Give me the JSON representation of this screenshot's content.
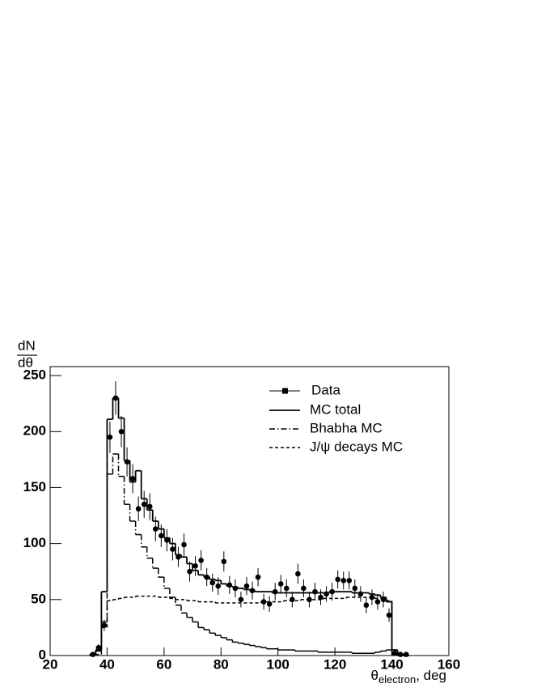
{
  "chart_data": {
    "type": "histogram",
    "bins": [
      34,
      36,
      38,
      40,
      42,
      44,
      46,
      48,
      50,
      52,
      54,
      56,
      58,
      60,
      62,
      64,
      66,
      68,
      70,
      72,
      74,
      76,
      78,
      80,
      82,
      84,
      86,
      88,
      90,
      92,
      94,
      96,
      98,
      100,
      102,
      104,
      106,
      108,
      110,
      112,
      114,
      116,
      118,
      120,
      122,
      124,
      126,
      128,
      130,
      132,
      134,
      136,
      138,
      140,
      142,
      144,
      146
    ],
    "series": [
      {
        "name": "MC total",
        "color": "#000000",
        "style": "solid",
        "values": [
          1,
          5,
          57,
          211,
          230,
          212,
          174,
          155,
          165,
          140,
          130,
          120,
          113,
          105,
          100,
          90,
          88,
          82,
          76,
          72,
          70,
          68,
          67,
          64,
          62,
          61,
          60,
          59,
          58,
          57,
          57,
          57,
          56,
          56,
          56,
          56,
          56,
          56,
          56,
          56,
          56,
          56,
          57,
          57,
          57,
          57,
          56,
          56,
          56,
          55,
          54,
          52,
          48,
          5,
          1,
          0
        ]
      },
      {
        "name": "Bhabha MC",
        "color": "#000000",
        "style": "dashdot",
        "values": [
          1,
          4,
          30,
          162,
          180,
          160,
          135,
          120,
          108,
          97,
          87,
          78,
          70,
          60,
          52,
          45,
          38,
          34,
          30,
          25,
          23,
          20,
          18,
          16,
          14,
          12,
          11,
          10,
          9,
          8,
          7,
          6,
          6,
          5,
          5,
          5,
          4,
          4,
          4,
          4,
          3,
          3,
          3,
          3,
          3,
          3,
          2,
          2,
          2,
          2,
          3,
          4,
          5,
          1,
          0,
          0
        ]
      },
      {
        "name": "J/ψ decays MC",
        "color": "#000000",
        "style": "dashed",
        "values": [
          0,
          1,
          25,
          49,
          50,
          51,
          52,
          52,
          53,
          53,
          53,
          53,
          52,
          52,
          51,
          50,
          50,
          49,
          49,
          48,
          48,
          48,
          47,
          47,
          47,
          47,
          47,
          47,
          47,
          47,
          48,
          48,
          48,
          48,
          49,
          49,
          49,
          50,
          50,
          50,
          50,
          51,
          51,
          51,
          51,
          52,
          52,
          52,
          52,
          52,
          51,
          51,
          49,
          3,
          1,
          0
        ]
      }
    ],
    "data": {
      "name": "Data",
      "color": "#000000",
      "values": [
        1,
        7,
        27,
        195,
        230,
        200,
        173,
        158,
        131,
        135,
        133,
        113,
        107,
        103,
        95,
        88,
        99,
        75,
        80,
        85,
        70,
        65,
        62,
        84,
        63,
        60,
        50,
        62,
        58,
        70,
        48,
        46,
        57,
        64,
        60,
        50,
        73,
        60,
        50,
        57,
        52,
        55,
        57,
        68,
        67,
        67,
        60,
        55,
        45,
        52,
        48,
        50,
        36,
        2,
        1,
        1
      ],
      "errors": [
        1,
        3,
        5,
        14,
        15,
        14,
        13,
        13,
        11,
        12,
        12,
        11,
        10,
        10,
        10,
        9,
        10,
        9,
        9,
        9,
        8,
        8,
        8,
        9,
        8,
        8,
        7,
        8,
        8,
        8,
        7,
        7,
        8,
        8,
        8,
        7,
        9,
        8,
        7,
        8,
        7,
        7,
        8,
        8,
        8,
        8,
        8,
        7,
        7,
        7,
        7,
        7,
        6,
        1,
        1,
        1
      ]
    },
    "xlabel": {
      "symbol": "θ",
      "subscript": "electron",
      "suffix": ", deg"
    },
    "ylabel": {
      "numerator": "dN",
      "denominator": "dθ"
    },
    "xlim": [
      20,
      160
    ],
    "xticks": [
      20,
      40,
      60,
      80,
      100,
      120,
      140,
      160
    ],
    "ylim": [
      0,
      258
    ],
    "yticks": [
      0,
      50,
      100,
      150,
      200,
      250
    ],
    "legend": "upper right"
  }
}
